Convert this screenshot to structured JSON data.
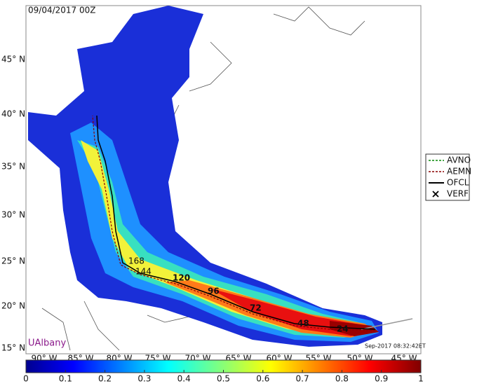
{
  "header": {
    "title": "09/04/2017 00Z"
  },
  "map": {
    "lat_labels": [
      "45° N",
      "40° N",
      "35° N",
      "30° N",
      "25° N",
      "20° N",
      "15° N"
    ],
    "lon_labels": [
      "90° W",
      "85° W",
      "80° W",
      "75° W",
      "70° W",
      "65° W",
      "60° W",
      "55° W",
      "50° W",
      "45° W"
    ],
    "forecast_hours": [
      "168",
      "144",
      "120",
      "96",
      "72",
      "48",
      "24"
    ],
    "credit": "UAlbany",
    "timestamp": "Sep-2017 08:32:42ET"
  },
  "legend": {
    "entries": [
      "AVNO",
      "AEMN",
      "OFCL",
      "VERF"
    ]
  },
  "colorbar": {
    "ticks": [
      0,
      0.1,
      0.2,
      0.3,
      0.4,
      0.5,
      0.6,
      0.7,
      0.8,
      0.9,
      1
    ]
  }
}
